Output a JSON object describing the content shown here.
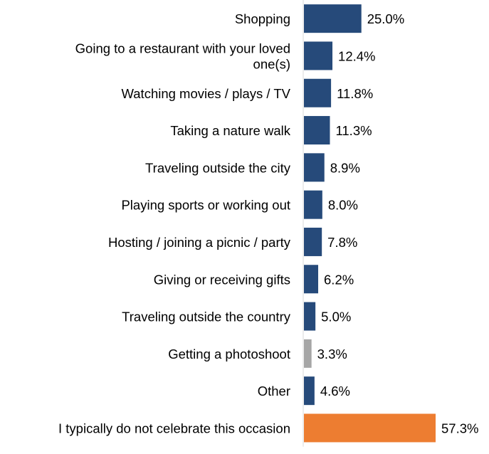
{
  "chart_data": {
    "type": "bar",
    "orientation": "horizontal",
    "categories": [
      "Shopping",
      [
        "Going to a restaurant with your loved",
        "one(s)"
      ],
      "Watching movies / plays / TV",
      "Taking a nature walk",
      "Traveling outside the city",
      "Playing sports or working out",
      "Hosting / joining a picnic / party",
      "Giving or receiving gifts",
      "Traveling outside the country",
      "Getting a photoshoot",
      "Other",
      "I typically do not celebrate this occasion"
    ],
    "values": [
      25.0,
      12.4,
      11.8,
      11.3,
      8.9,
      8.0,
      7.8,
      6.2,
      5.0,
      3.3,
      4.6,
      57.3
    ],
    "value_labels": [
      "25.0%",
      "12.4%",
      "11.8%",
      "11.3%",
      "8.9%",
      "8.0%",
      "7.8%",
      "6.2%",
      "5.0%",
      "3.3%",
      "4.6%",
      "57.3%"
    ],
    "colors": [
      "#264a7a",
      "#264a7a",
      "#264a7a",
      "#264a7a",
      "#264a7a",
      "#264a7a",
      "#264a7a",
      "#264a7a",
      "#264a7a",
      "#a6a6a6",
      "#264a7a",
      "#ed7d31"
    ],
    "axis_color": "#d9d9d9",
    "xlim": [
      0,
      57.3
    ],
    "grid": false,
    "legend": "none",
    "title": "",
    "xlabel": "",
    "ylabel": ""
  }
}
